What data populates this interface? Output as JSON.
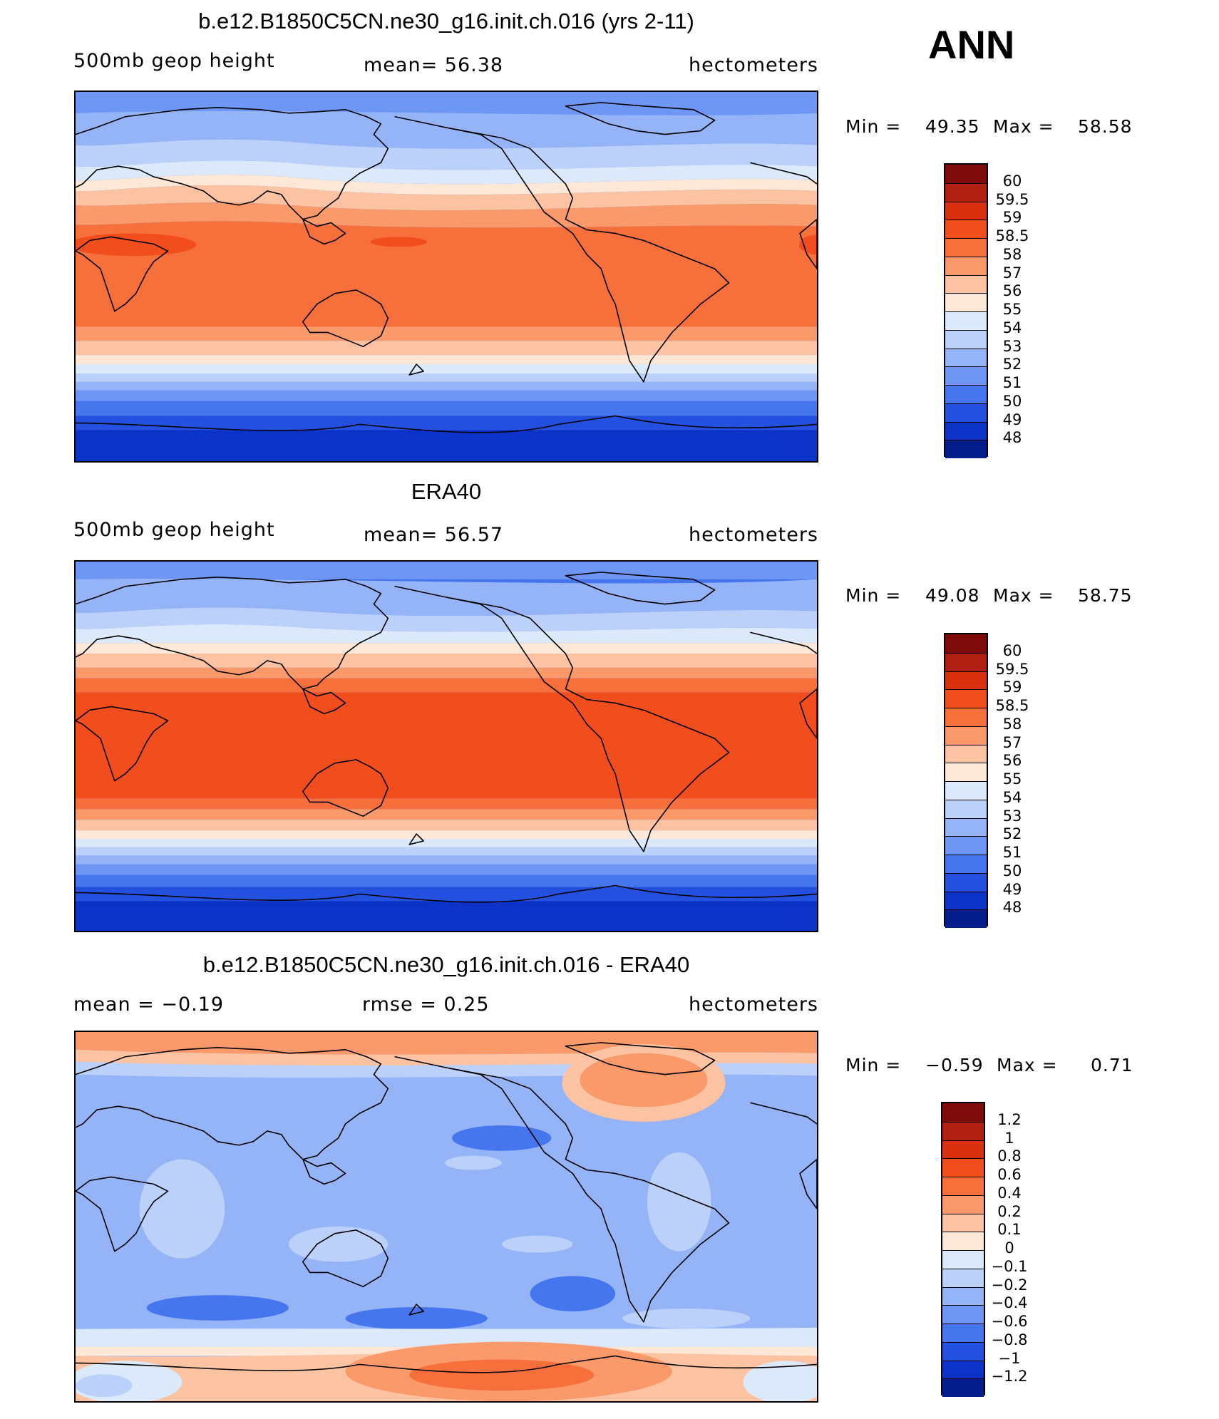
{
  "season": "ANN",
  "panels": [
    {
      "title": "b.e12.B1850C5CN.ne30_g16.init.ch.016 (yrs 2-11)",
      "left_label": "500mb geop height",
      "center_label": "mean=  56.38",
      "right_label": "hectometers",
      "min_label": "Min =",
      "min_value": "49.35",
      "max_label": "Max =",
      "max_value": "58.58",
      "colorbar": {
        "levels": [
          "60",
          "59.5",
          "59",
          "58.5",
          "58",
          "57",
          "56",
          "55",
          "54",
          "53",
          "52",
          "51",
          "50",
          "49",
          "48"
        ],
        "colors": [
          "#7f0a0a",
          "#b01f0f",
          "#d9300f",
          "#f24d1c",
          "#f7703c",
          "#fa9a6a",
          "#fcc3a2",
          "#fde7d6",
          "#dce9fb",
          "#bcd1f9",
          "#95b4f7",
          "#6e97f5",
          "#4676ee",
          "#2350df",
          "#0b33c8",
          "#041e8c"
        ]
      }
    },
    {
      "title": "ERA40",
      "left_label": "500mb geop height",
      "center_label": "mean=  56.57",
      "right_label": "hectometers",
      "min_label": "Min =",
      "min_value": "49.08",
      "max_label": "Max =",
      "max_value": "58.75",
      "colorbar": {
        "levels": [
          "60",
          "59.5",
          "59",
          "58.5",
          "58",
          "57",
          "56",
          "55",
          "54",
          "53",
          "52",
          "51",
          "50",
          "49",
          "48"
        ],
        "colors": [
          "#7f0a0a",
          "#b01f0f",
          "#d9300f",
          "#f24d1c",
          "#f7703c",
          "#fa9a6a",
          "#fcc3a2",
          "#fde7d6",
          "#dce9fb",
          "#bcd1f9",
          "#95b4f7",
          "#6e97f5",
          "#4676ee",
          "#2350df",
          "#0b33c8",
          "#041e8c"
        ]
      }
    },
    {
      "title": "b.e12.B1850C5CN.ne30_g16.init.ch.016 - ERA40",
      "left_label": "mean =   −0.19",
      "center_label": "rmse =    0.25",
      "right_label": "hectometers",
      "min_label": "Min =",
      "min_value": "−0.59",
      "max_label": "Max =",
      "max_value": "0.71",
      "colorbar": {
        "levels": [
          "1.2",
          "1",
          "0.8",
          "0.6",
          "0.4",
          "0.2",
          "0.1",
          "0",
          "−0.1",
          "−0.2",
          "−0.4",
          "−0.6",
          "−0.8",
          "−1",
          "−1.2"
        ],
        "colors": [
          "#7f0a0a",
          "#b01f0f",
          "#d9300f",
          "#f24d1c",
          "#f7703c",
          "#fa9a6a",
          "#fcc3a2",
          "#fde7d6",
          "#dce9fb",
          "#bcd1f9",
          "#95b4f7",
          "#6e97f5",
          "#4676ee",
          "#2350df",
          "#0b33c8",
          "#041e8c"
        ]
      }
    }
  ]
}
